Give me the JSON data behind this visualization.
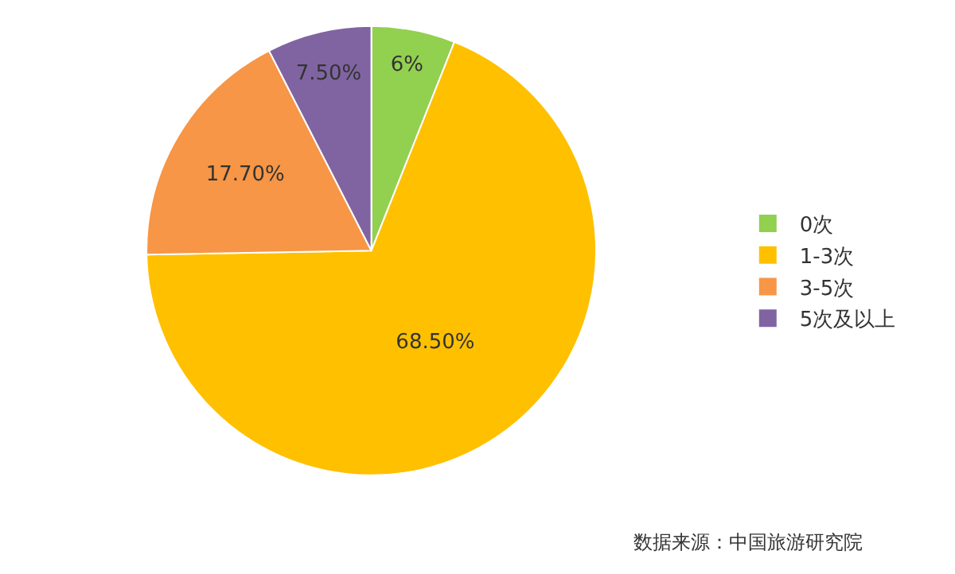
{
  "chart_data": {
    "type": "pie",
    "categories": [
      "0次",
      "1-3次",
      "3-5次",
      "5次及以上"
    ],
    "values": [
      6,
      68.5,
      17.7,
      7.5
    ],
    "value_labels": [
      "6%",
      "68.50%",
      "17.70%",
      "7.50%"
    ],
    "colors": [
      "#92d050",
      "#ffc000",
      "#f79646",
      "#8064a2"
    ],
    "legend": "right",
    "annotations": [
      "数据来源：中国旅游研究院"
    ]
  }
}
